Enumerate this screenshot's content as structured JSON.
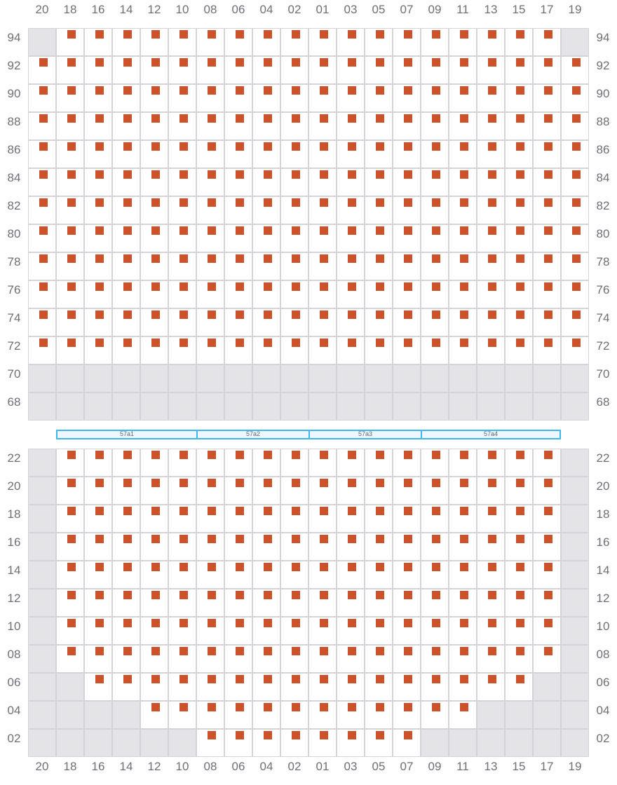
{
  "columns": [
    "20",
    "18",
    "16",
    "14",
    "12",
    "10",
    "08",
    "06",
    "04",
    "02",
    "01",
    "03",
    "05",
    "07",
    "09",
    "11",
    "13",
    "15",
    "17",
    "19"
  ],
  "legend": {
    "S": "seat",
    "X": "unavailable"
  },
  "colors": {
    "seat": "#cc522b",
    "unavailable": "#e4e4e7",
    "section_border": "#3bb8f2"
  },
  "upper_block": [
    {
      "row": "94",
      "cells": "XSSSSSSSSSSSSSSSSSSX"
    },
    {
      "row": "92",
      "cells": "SSSSSSSSSSSSSSSSSSSS"
    },
    {
      "row": "90",
      "cells": "SSSSSSSSSSSSSSSSSSSS"
    },
    {
      "row": "88",
      "cells": "SSSSSSSSSSSSSSSSSSSS"
    },
    {
      "row": "86",
      "cells": "SSSSSSSSSSSSSSSSSSSS"
    },
    {
      "row": "84",
      "cells": "SSSSSSSSSSSSSSSSSSSS"
    },
    {
      "row": "82",
      "cells": "SSSSSSSSSSSSSSSSSSSS"
    },
    {
      "row": "80",
      "cells": "SSSSSSSSSSSSSSSSSSSS"
    },
    {
      "row": "78",
      "cells": "SSSSSSSSSSSSSSSSSSSS"
    },
    {
      "row": "76",
      "cells": "SSSSSSSSSSSSSSSSSSSS"
    },
    {
      "row": "74",
      "cells": "SSSSSSSSSSSSSSSSSSSS"
    },
    {
      "row": "72",
      "cells": "SSSSSSSSSSSSSSSSSSSS"
    },
    {
      "row": "70",
      "cells": "XXXXXXXXXXXXXXXXXXXX"
    },
    {
      "row": "68",
      "cells": "XXXXXXXXXXXXXXXXXXXX"
    }
  ],
  "sections": [
    "57a1",
    "57a2",
    "57a3",
    "57a4"
  ],
  "lower_block": [
    {
      "row": "22",
      "cells": "XSSSSSSSSSSSSSSSSSSX"
    },
    {
      "row": "20",
      "cells": "XSSSSSSSSSSSSSSSSSSX"
    },
    {
      "row": "18",
      "cells": "XSSSSSSSSSSSSSSSSSSX"
    },
    {
      "row": "16",
      "cells": "XSSSSSSSSSSSSSSSSSSX"
    },
    {
      "row": "14",
      "cells": "XSSSSSSSSSSSSSSSSSSX"
    },
    {
      "row": "12",
      "cells": "XSSSSSSSSSSSSSSSSSSX"
    },
    {
      "row": "10",
      "cells": "XSSSSSSSSSSSSSSSSSSX"
    },
    {
      "row": "08",
      "cells": "XSSSSSSSSSSSSSSSSSSX"
    },
    {
      "row": "06",
      "cells": "XXSSSSSSSSSSSSSSSSXX"
    },
    {
      "row": "04",
      "cells": "XXXXSSSSSSSSSSSSXXXX"
    },
    {
      "row": "02",
      "cells": "XXXXXXSSSSSSSSXXXXXX"
    }
  ]
}
